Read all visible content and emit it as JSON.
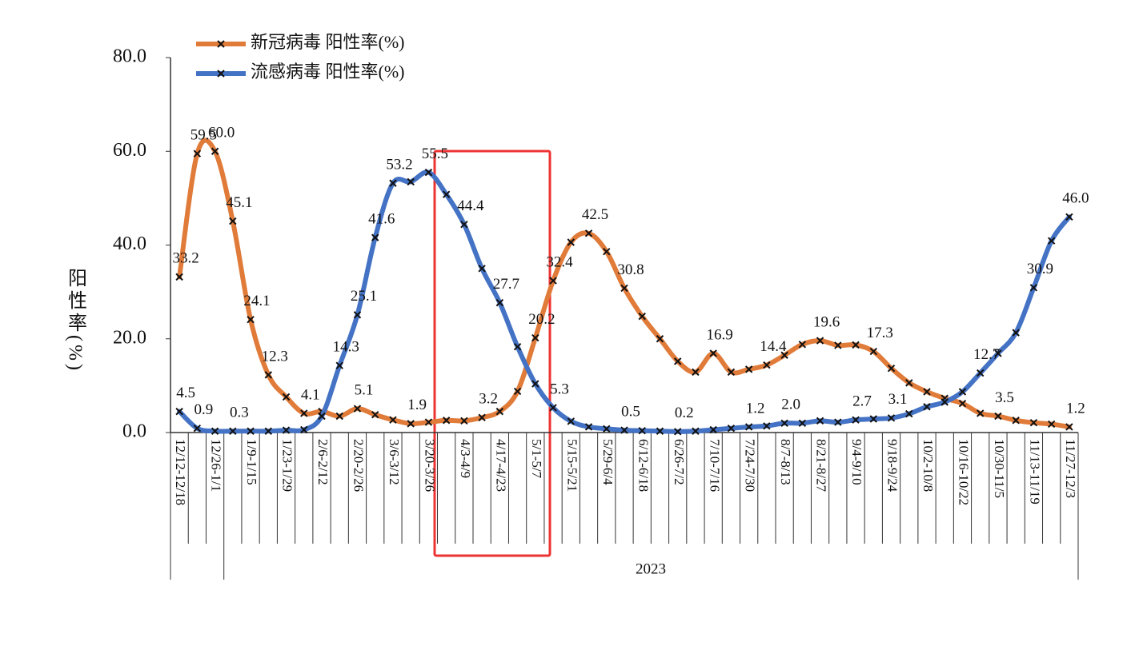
{
  "chart_data": {
    "type": "line",
    "y_label": "阳性率(%)",
    "group_label": "2023",
    "categories": [
      "12/12-12/18",
      null,
      "12/26-1/1",
      null,
      "1/9-1/15",
      null,
      "1/23-1/29",
      null,
      "2/6-2/12",
      null,
      "2/20-2/26",
      null,
      "3/6-3/12",
      null,
      "3/20-3/26",
      null,
      "4/3-4/9",
      null,
      "4/17-4/23",
      null,
      "5/1-5/7",
      null,
      "5/15-5/21",
      null,
      "5/29-6/4",
      null,
      "6/12-6/18",
      null,
      "6/26-7/2",
      null,
      "7/10-7/16",
      null,
      "7/24-7/30",
      null,
      "8/7-8/13",
      null,
      "8/21-8/27",
      null,
      "9/4-9/10",
      null,
      "9/18-9/24",
      null,
      "10/2-10/8",
      null,
      "10/16-10/22",
      null,
      "10/30-11/5",
      null,
      "11/13-11/19",
      null,
      "11/27-12/3"
    ],
    "series": [
      {
        "name": "新冠病毒  阳性率(%)",
        "color": "#e07b39",
        "values": [
          33.2,
          59.5,
          60.0,
          45.1,
          24.1,
          12.3,
          7.6,
          4.1,
          4.5,
          3.5,
          5.1,
          3.8,
          2.7,
          1.9,
          2.2,
          2.6,
          2.5,
          3.2,
          4.5,
          8.8,
          20.2,
          32.4,
          40.6,
          42.5,
          38.6,
          30.8,
          24.8,
          20.0,
          15.2,
          12.9,
          16.9,
          12.9,
          13.5,
          14.4,
          16.5,
          18.8,
          19.6,
          18.6,
          18.7,
          17.3,
          13.7,
          10.6,
          8.7,
          7.3,
          6.2,
          4.1,
          3.5,
          2.6,
          2.1,
          1.8,
          1.2
        ],
        "value_labels": [
          "33.2",
          "59.5",
          "60.0",
          "45.1",
          "24.1",
          "12.3",
          null,
          "4.1",
          null,
          null,
          "5.1",
          null,
          null,
          "1.9",
          null,
          null,
          null,
          "3.2",
          null,
          null,
          "20.2",
          "32.4",
          null,
          "42.5",
          null,
          "30.8",
          null,
          null,
          null,
          null,
          "16.9",
          null,
          null,
          "14.4",
          null,
          null,
          "19.6",
          null,
          null,
          "17.3",
          null,
          null,
          null,
          null,
          null,
          null,
          "3.5",
          null,
          null,
          null,
          "1.2"
        ]
      },
      {
        "name": "流感病毒  阳性率(%)",
        "color": "#4472c4",
        "values": [
          4.5,
          0.9,
          0.3,
          0.3,
          0.3,
          0.3,
          0.5,
          0.6,
          3.5,
          14.3,
          25.1,
          41.6,
          53.2,
          53.5,
          55.5,
          50.8,
          44.4,
          35.0,
          27.7,
          18.3,
          10.4,
          5.3,
          2.4,
          1.2,
          0.8,
          0.5,
          0.4,
          0.3,
          0.2,
          0.3,
          0.6,
          0.9,
          1.2,
          1.4,
          2.0,
          2.0,
          2.5,
          2.2,
          2.7,
          2.9,
          3.1,
          4.0,
          5.5,
          6.5,
          8.7,
          12.7,
          16.9,
          21.3,
          30.9,
          40.9,
          46.0
        ],
        "value_labels": [
          "4.5",
          "0.9",
          null,
          "0.3",
          null,
          null,
          null,
          null,
          null,
          "14.3",
          "25.1",
          "41.6",
          "53.2",
          null,
          "55.5",
          null,
          "44.4",
          null,
          "27.7",
          null,
          null,
          "5.3",
          null,
          null,
          null,
          "0.5",
          null,
          null,
          "0.2",
          null,
          null,
          null,
          "1.2",
          null,
          "2.0",
          null,
          null,
          null,
          "2.7",
          null,
          "3.1",
          null,
          null,
          null,
          null,
          "12.7",
          null,
          null,
          "30.9",
          null,
          "46.0"
        ]
      }
    ],
    "ylim": [
      0,
      80
    ],
    "yticks": [
      {
        "value": 0,
        "label": "0.0"
      },
      {
        "value": 20,
        "label": "20.0"
      },
      {
        "value": 40,
        "label": "40.0"
      },
      {
        "value": 60,
        "label": "60.0"
      },
      {
        "value": 80,
        "label": "80.0"
      }
    ],
    "grid": false,
    "legend": "top-left"
  }
}
